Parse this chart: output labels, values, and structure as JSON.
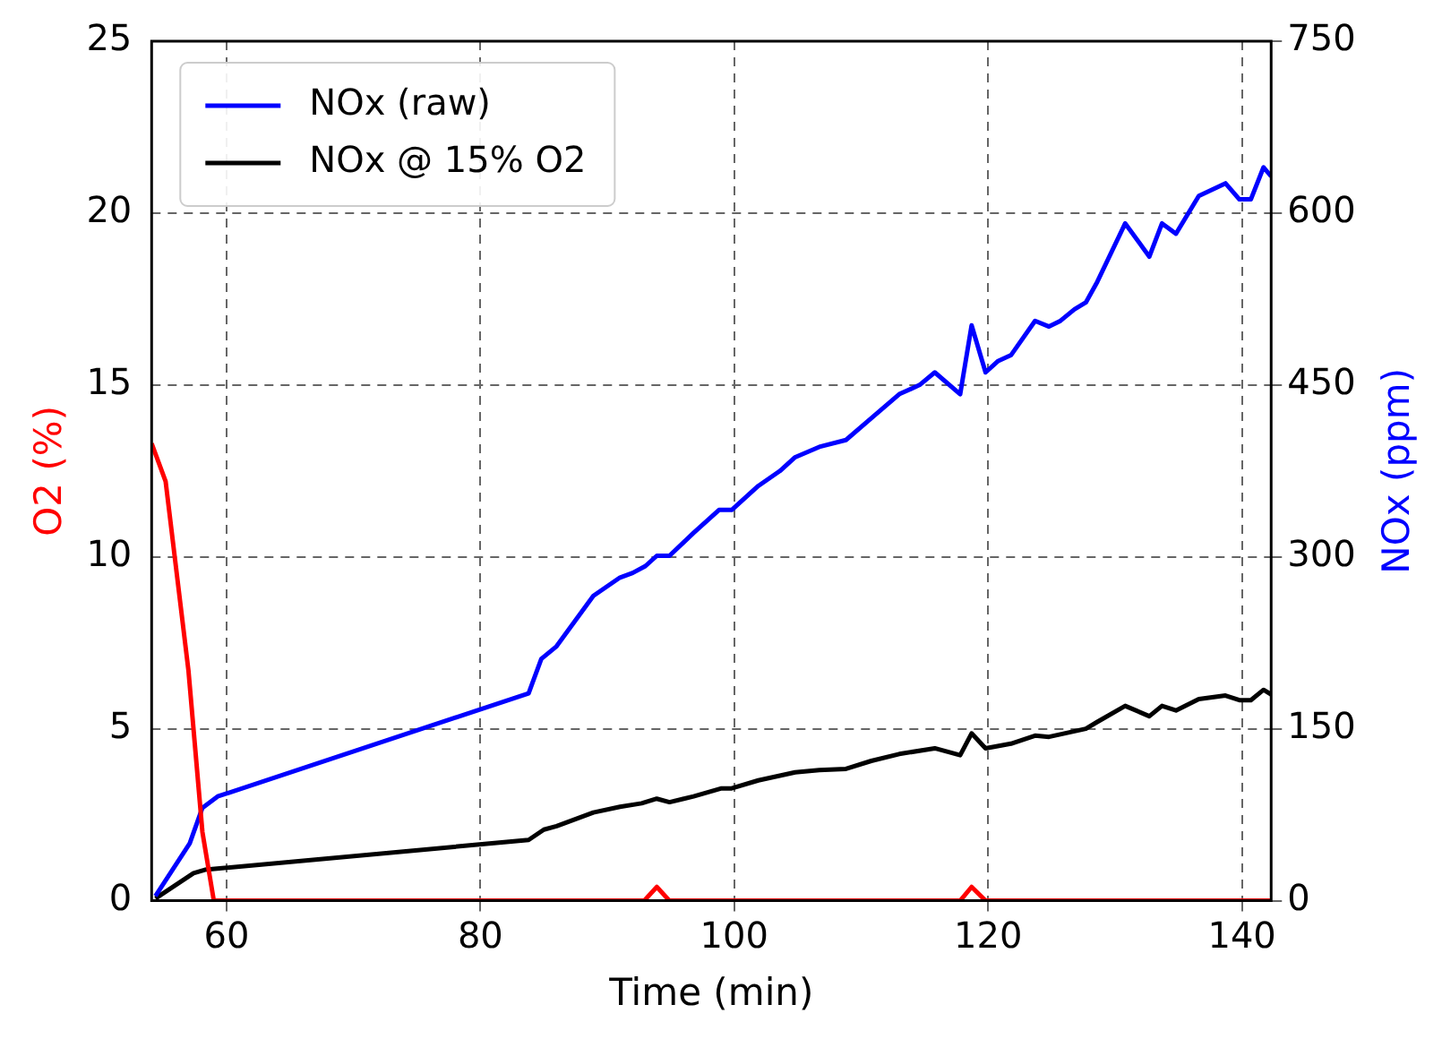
{
  "chart_data": {
    "type": "line",
    "xlabel": "Time (min)",
    "ylabel": "O2 (%)",
    "y2label": "NOx (ppm)",
    "xlim": [
      54.1,
      142.3
    ],
    "xticks": [
      60,
      80,
      100,
      120,
      140
    ],
    "ylim": [
      0,
      25
    ],
    "yticks": [
      0,
      5,
      10,
      15,
      20,
      25
    ],
    "y2lim": [
      0,
      750
    ],
    "y2ticks": [
      0,
      150,
      300,
      450,
      600,
      750
    ],
    "grid": true,
    "legend": "top left",
    "marker": "none",
    "line_style": "solid",
    "series": [
      {
        "color": "#ff0000",
        "x": [
          54.1,
          55.2,
          57.0,
          58.1,
          59.0,
          92.9,
          93.9,
          94.9,
          117.8,
          118.7,
          119.8,
          142.3
        ],
        "values": [
          13.3,
          12.2,
          6.7,
          2.0,
          0,
          0,
          0.4,
          0,
          0,
          0.4,
          0,
          0
        ]
      },
      {
        "name": "NOx (raw)",
        "color": "#0000ff",
        "axis": "y2",
        "x": [
          54.4,
          57.1,
          58.1,
          59.3,
          83.8,
          84.8,
          86.0,
          88.9,
          91.0,
          92.0,
          93.0,
          93.9,
          94.9,
          96.8,
          98.8,
          99.8,
          101.9,
          103.6,
          104.8,
          106.7,
          108.8,
          110.8,
          113.0,
          114.6,
          115.8,
          117.8,
          118.7,
          119.8,
          120.8,
          121.8,
          123.7,
          124.8,
          125.7,
          126.8,
          127.7,
          128.6,
          130.8,
          132.7,
          133.7,
          134.8,
          136.6,
          138.7,
          139.8,
          140.7,
          141.7,
          142.3
        ],
        "values": [
          4,
          50,
          81,
          91,
          181,
          211,
          222,
          266,
          282,
          286,
          292,
          301,
          301,
          321,
          341,
          341,
          362,
          375,
          387,
          396,
          402,
          421,
          442,
          450,
          461,
          442,
          502,
          461,
          471,
          476,
          506,
          501,
          506,
          516,
          522,
          540,
          591,
          562,
          591,
          582,
          615,
          626,
          612,
          612,
          640,
          632
        ]
      },
      {
        "name": "NOx @ 15% O2",
        "color": "#000000",
        "axis": "y2",
        "x": [
          54.4,
          57.4,
          58.3,
          83.8,
          85.0,
          86.0,
          88.9,
          91.0,
          92.7,
          93.9,
          94.9,
          96.8,
          99.0,
          99.8,
          101.9,
          104.8,
          106.7,
          108.8,
          110.8,
          113.0,
          115.8,
          117.8,
          118.7,
          119.8,
          121.8,
          123.7,
          124.8,
          127.7,
          128.6,
          130.8,
          132.7,
          133.7,
          134.8,
          136.6,
          138.7,
          139.8,
          140.7,
          141.7,
          142.3
        ],
        "values": [
          2,
          24,
          27,
          53,
          62,
          65,
          77,
          82,
          85,
          89,
          86,
          91,
          98,
          98,
          105,
          112,
          114,
          115,
          122,
          128,
          133,
          127,
          146,
          133,
          137,
          144,
          143,
          150,
          156,
          170,
          161,
          170,
          166,
          176,
          179,
          175,
          175,
          184,
          180
        ]
      }
    ]
  }
}
